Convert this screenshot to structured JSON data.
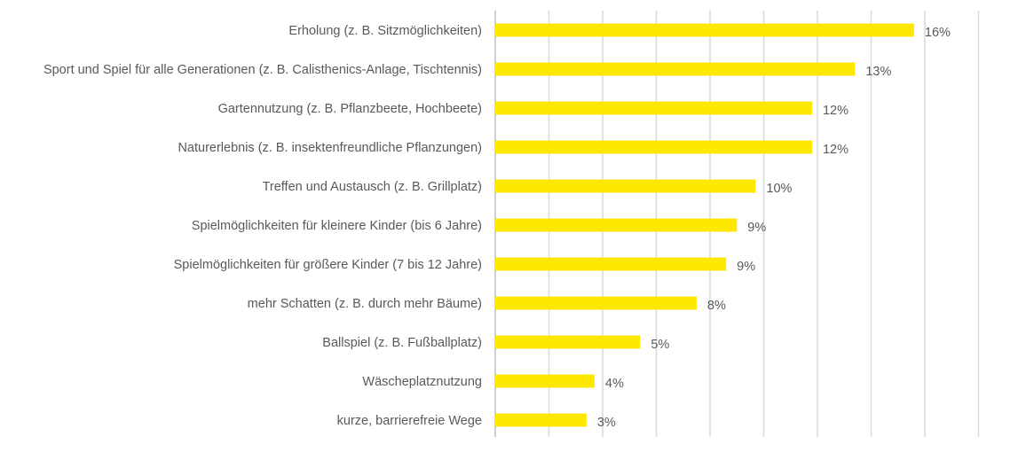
{
  "chart_data": {
    "type": "bar",
    "orientation": "horizontal",
    "categories": [
      "Erholung (z. B. Sitzmöglichkeiten)",
      "Sport und Spiel für alle Generationen (z. B. Calisthenics-Anlage, Tischtennis)",
      "Gartennutzung (z. B. Pflanzbeete, Hochbeete)",
      "Naturerlebnis (z. B. insektenfreundliche Pflanzungen)",
      "Treffen und Austausch (z. B. Grillplatz)",
      "Spielmöglichkeiten für kleinere Kinder (bis 6 Jahre)",
      "Spielmöglichkeiten für größere Kinder (7 bis 12 Jahre)",
      "mehr Schatten (z. B. durch mehr Bäume)",
      "Ballspiel (z. B. Fußballplatz)",
      "Wäscheplatznutzung",
      "kurze, barrierefreie Wege"
    ],
    "values": [
      15.6,
      13.4,
      11.8,
      11.8,
      9.7,
      9.0,
      8.6,
      7.5,
      5.4,
      3.7,
      3.4
    ],
    "data_labels": [
      "16%",
      "13%",
      "12%",
      "12%",
      "10%",
      "9%",
      "9%",
      "8%",
      "5%",
      "4%",
      "3%"
    ],
    "xlim": [
      0,
      18
    ],
    "grid_step": 2,
    "grid": true,
    "bar_color": "#FFE800",
    "title": "",
    "xlabel": "",
    "ylabel": ""
  }
}
